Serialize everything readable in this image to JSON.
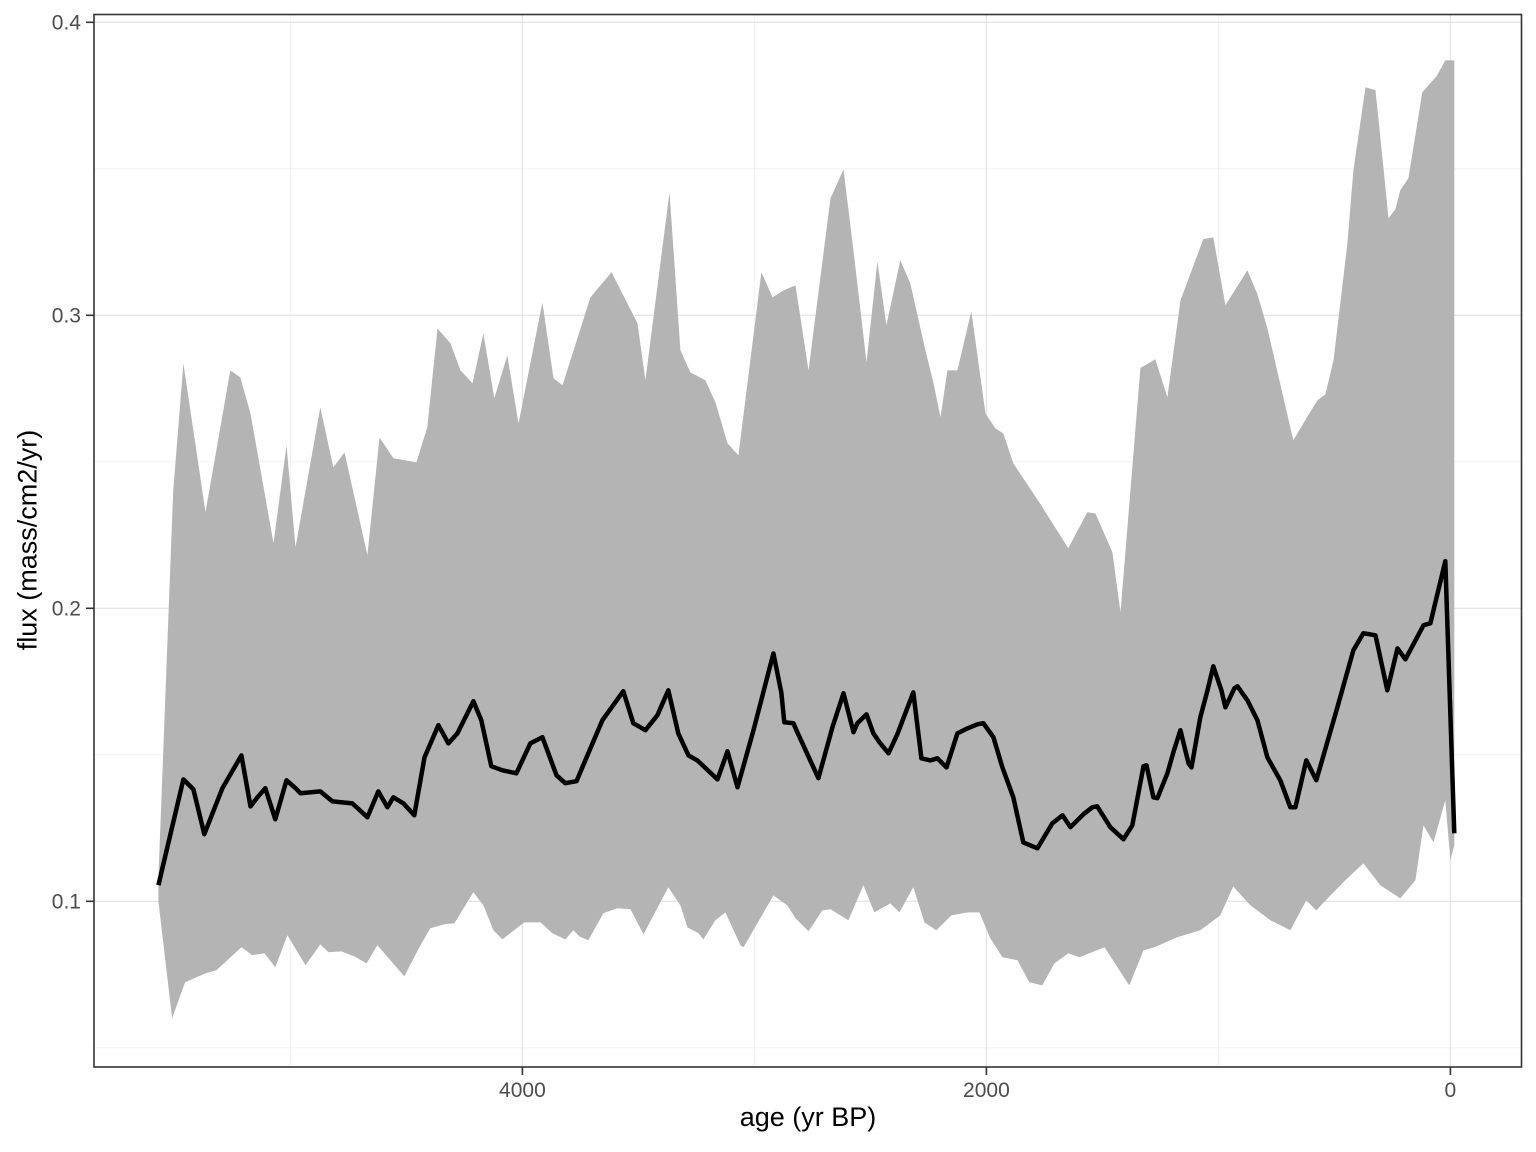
{
  "figure": {
    "xlabel": "age (yr BP)",
    "ylabel": "flux (mass/cm2/yr)"
  },
  "chart_data": {
    "type": "line",
    "title": "",
    "xlabel": "age (yr BP)",
    "ylabel": "flux (mass/cm2/yr)",
    "legend": "none",
    "grid": "on",
    "x_axis": {
      "reversed": true,
      "range": [
        5845,
        -305
      ],
      "major_ticks": [
        4000,
        2000,
        0
      ],
      "major_tick_labels": [
        "4000",
        "2000",
        "0"
      ],
      "minor_ticks": [
        5000,
        3000,
        1000
      ]
    },
    "y_axis": {
      "range": [
        0.043,
        0.402
      ],
      "major_ticks": [
        0.1,
        0.2,
        0.3,
        0.4
      ],
      "major_tick_labels": [
        "0.1",
        "0.2",
        "0.3",
        "0.4"
      ],
      "minor_ticks": [
        0.05,
        0.15,
        0.25,
        0.35
      ]
    },
    "style": {
      "ribbon_color": "#b4b4b4",
      "line_color": "#000000",
      "grid_major_color": "#e6e6e6",
      "grid_minor_color": "#f2f2f2",
      "panel_border_color": "#333333",
      "tick_color": "#333333",
      "tick_label_color": "#4d4d4d",
      "background": "#ffffff"
    },
    "series": [
      {
        "name": "uncertainty-ribbon",
        "type": "area-band",
        "color": "#b4b4b4",
        "upper": {
          "age": [
            5569,
            5505,
            5461,
            5366,
            5259,
            5216,
            5172,
            5073,
            5017,
            4978,
            4871,
            4815,
            4767,
            4668,
            4616,
            4556,
            4457,
            4410,
            4366,
            4310,
            4267,
            4215,
            4168,
            4121,
            4065,
            4017,
            3914,
            3866,
            3827,
            3707,
            3616,
            3565,
            3504,
            3470,
            3366,
            3319,
            3276,
            3211,
            3168,
            3116,
            3069,
            2970,
            2922,
            2875,
            2823,
            2767,
            2672,
            2616,
            2573,
            2517,
            2470,
            2431,
            2371,
            2328,
            2263,
            2228,
            2198,
            2168,
            2125,
            2065,
            2004,
            1961,
            1927,
            1884,
            1767,
            1647,
            1565,
            1530,
            1457,
            1422,
            1336,
            1272,
            1220,
            1164,
            1065,
            1022,
            970,
            875,
            832,
            789,
            677,
            616,
            573,
            539,
            504,
            444,
            418,
            366,
            323,
            289,
            267,
            237,
            216,
            181,
            121,
            60,
            22,
            -17
          ],
          "flux": [
            0.108,
            0.24,
            0.2836,
            0.2328,
            0.2812,
            0.2788,
            0.2665,
            0.2222,
            0.2556,
            0.2208,
            0.2686,
            0.2481,
            0.2532,
            0.2181,
            0.2583,
            0.2512,
            0.2498,
            0.2618,
            0.2955,
            0.2904,
            0.2812,
            0.2768,
            0.2938,
            0.2717,
            0.2863,
            0.2631,
            0.3044,
            0.2785,
            0.2761,
            0.3061,
            0.3147,
            0.3068,
            0.2973,
            0.2778,
            0.342,
            0.2881,
            0.2805,
            0.2778,
            0.2703,
            0.2563,
            0.2522,
            0.3147,
            0.3061,
            0.3085,
            0.3102,
            0.2812,
            0.3399,
            0.3498,
            0.322,
            0.284,
            0.3184,
            0.2966,
            0.3188,
            0.3109,
            0.2881,
            0.2768,
            0.2652,
            0.2812,
            0.2812,
            0.3014,
            0.2665,
            0.2614,
            0.2597,
            0.2495,
            0.2355,
            0.2205,
            0.2328,
            0.2324,
            0.2191,
            0.1986,
            0.282,
            0.285,
            0.272,
            0.305,
            0.326,
            0.3266,
            0.3034,
            0.3154,
            0.3072,
            0.2956,
            0.2573,
            0.2655,
            0.271,
            0.273,
            0.2846,
            0.3246,
            0.3495,
            0.3778,
            0.3768,
            0.3505,
            0.3331,
            0.3362,
            0.3427,
            0.3468,
            0.3761,
            0.3816,
            0.387,
            0.387
          ]
        },
        "lower": {
          "age": [
            5569,
            5510,
            5454,
            5366,
            5319,
            5211,
            5164,
            5112,
            5065,
            5013,
            4935,
            4871,
            4836,
            4780,
            4724,
            4672,
            4625,
            4569,
            4509,
            4444,
            4397,
            4336,
            4293,
            4211,
            4168,
            4125,
            4086,
            3992,
            3922,
            3871,
            3815,
            3780,
            3754,
            3716,
            3651,
            3591,
            3534,
            3478,
            3371,
            3319,
            3289,
            3241,
            3220,
            3168,
            3125,
            3060,
            3047,
            2918,
            2858,
            2823,
            2767,
            2707,
            2672,
            2595,
            2530,
            2483,
            2414,
            2375,
            2315,
            2267,
            2216,
            2151,
            2082,
            2030,
            1983,
            1931,
            1866,
            1815,
            1759,
            1707,
            1647,
            1599,
            1491,
            1384,
            1323,
            1276,
            1177,
            1078,
            992,
            936,
            862,
            776,
            690,
            621,
            578,
            517,
            453,
            375,
            302,
            216,
            151,
            116,
            73,
            22,
            0,
            -17
          ],
          "flux": [
            0.1,
            0.0601,
            0.0724,
            0.0754,
            0.0765,
            0.0843,
            0.0816,
            0.0823,
            0.0775,
            0.0884,
            0.0782,
            0.0853,
            0.0826,
            0.0829,
            0.0812,
            0.0788,
            0.085,
            0.0799,
            0.0744,
            0.0843,
            0.0908,
            0.0922,
            0.0925,
            0.1031,
            0.0986,
            0.0901,
            0.087,
            0.0928,
            0.0928,
            0.0891,
            0.087,
            0.0901,
            0.088,
            0.0867,
            0.0959,
            0.0976,
            0.0973,
            0.0887,
            0.1048,
            0.0986,
            0.0911,
            0.0891,
            0.087,
            0.0935,
            0.0962,
            0.085,
            0.0843,
            0.102,
            0.0986,
            0.0942,
            0.0898,
            0.0969,
            0.0973,
            0.0935,
            0.1055,
            0.0962,
            0.0993,
            0.0962,
            0.1048,
            0.0928,
            0.0901,
            0.0952,
            0.0962,
            0.0962,
            0.0874,
            0.0809,
            0.0799,
            0.0724,
            0.0713,
            0.0788,
            0.0823,
            0.0809,
            0.0843,
            0.0713,
            0.0833,
            0.0843,
            0.0877,
            0.0901,
            0.0952,
            0.1051,
            0.0986,
            0.0935,
            0.0901,
            0.1003,
            0.0969,
            0.102,
            0.1072,
            0.113,
            0.1055,
            0.101,
            0.1072,
            0.1259,
            0.1201,
            0.1345,
            0.114,
            0.1191
          ]
        }
      },
      {
        "name": "median-flux-line",
        "type": "line",
        "color": "#000000",
        "width": 4.5,
        "age": [
          5569,
          5461,
          5418,
          5371,
          5293,
          5211,
          5172,
          5142,
          5108,
          5065,
          5017,
          4978,
          4957,
          4871,
          4819,
          4733,
          4668,
          4621,
          4582,
          4556,
          4513,
          4466,
          4422,
          4362,
          4319,
          4280,
          4211,
          4177,
          4134,
          4086,
          4026,
          3966,
          3914,
          3853,
          3815,
          3767,
          3707,
          3655,
          3565,
          3522,
          3470,
          3418,
          3371,
          3328,
          3284,
          3246,
          3159,
          3116,
          3073,
          3004,
          2918,
          2884,
          2871,
          2832,
          2815,
          2724,
          2664,
          2616,
          2573,
          2556,
          2517,
          2487,
          2461,
          2422,
          2384,
          2315,
          2280,
          2241,
          2211,
          2172,
          2125,
          2082,
          2039,
          2013,
          1970,
          1931,
          1884,
          1841,
          1780,
          1716,
          1672,
          1638,
          1582,
          1543,
          1522,
          1466,
          1409,
          1371,
          1323,
          1310,
          1280,
          1263,
          1220,
          1194,
          1164,
          1129,
          1116,
          1078,
          1047,
          1022,
          987,
          970,
          931,
          918,
          875,
          832,
          789,
          733,
          690,
          668,
          621,
          578,
          487,
          418,
          375,
          323,
          272,
          228,
          194,
          116,
          86,
          22,
          -17
        ],
        "flux": [
          0.1055,
          0.1416,
          0.1382,
          0.1229,
          0.1386,
          0.1498,
          0.1324,
          0.1355,
          0.1386,
          0.128,
          0.1413,
          0.1386,
          0.1369,
          0.1375,
          0.1341,
          0.1334,
          0.1287,
          0.1375,
          0.1321,
          0.1355,
          0.1334,
          0.1294,
          0.1491,
          0.1601,
          0.1539,
          0.1573,
          0.1683,
          0.1618,
          0.1461,
          0.1447,
          0.1437,
          0.1539,
          0.156,
          0.143,
          0.1403,
          0.141,
          0.1522,
          0.1618,
          0.1717,
          0.1608,
          0.1584,
          0.1635,
          0.172,
          0.1573,
          0.1498,
          0.1481,
          0.1416,
          0.1512,
          0.1389,
          0.1584,
          0.1846,
          0.1713,
          0.1611,
          0.1608,
          0.1577,
          0.142,
          0.1594,
          0.171,
          0.1577,
          0.1608,
          0.1638,
          0.1573,
          0.1543,
          0.1505,
          0.157,
          0.1713,
          0.1488,
          0.1481,
          0.1488,
          0.1457,
          0.1573,
          0.159,
          0.1604,
          0.1608,
          0.156,
          0.1457,
          0.1355,
          0.1201,
          0.1181,
          0.1266,
          0.1294,
          0.1253,
          0.1297,
          0.1321,
          0.1324,
          0.1253,
          0.1212,
          0.1259,
          0.1461,
          0.1464,
          0.1355,
          0.1352,
          0.1437,
          0.1509,
          0.1584,
          0.1471,
          0.1457,
          0.1628,
          0.172,
          0.1802,
          0.172,
          0.1662,
          0.1727,
          0.1734,
          0.1686,
          0.1618,
          0.1491,
          0.1413,
          0.1321,
          0.1321,
          0.1481,
          0.1413,
          0.1662,
          0.1857,
          0.1915,
          0.1908,
          0.172,
          0.1863,
          0.1826,
          0.1942,
          0.1949,
          0.2161,
          0.1232
        ]
      }
    ]
  }
}
